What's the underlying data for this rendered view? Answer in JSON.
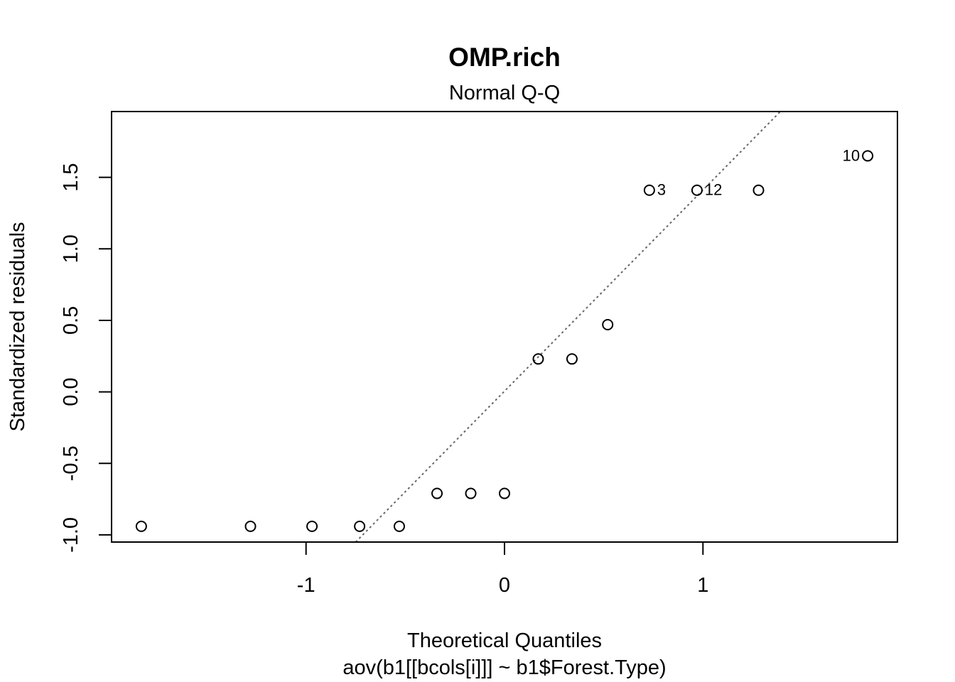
{
  "chart_data": {
    "type": "scatter",
    "title": "OMP.rich",
    "subtitle": "Normal Q-Q",
    "xlabel": "Theoretical Quantiles",
    "xlabel_sub": "aov(b1[[bcols[i]]] ~ b1$Forest.Type)",
    "ylabel": "Standardized residuals",
    "xlim": [
      -1.98,
      1.98
    ],
    "ylim": [
      -1.05,
      1.96
    ],
    "xticks": [
      -1,
      0,
      1
    ],
    "xtick_labels": [
      "-1",
      "0",
      "1"
    ],
    "yticks": [
      -1.0,
      -0.5,
      0.0,
      0.5,
      1.0,
      1.5
    ],
    "ytick_labels": [
      "-1.0",
      "-0.5",
      "0.0",
      "0.5",
      "1.0",
      "1.5"
    ],
    "grid": false,
    "points": [
      {
        "x": -1.83,
        "y": -0.94,
        "label": ""
      },
      {
        "x": -1.28,
        "y": -0.94,
        "label": ""
      },
      {
        "x": -0.97,
        "y": -0.94,
        "label": ""
      },
      {
        "x": -0.73,
        "y": -0.94,
        "label": ""
      },
      {
        "x": -0.53,
        "y": -0.94,
        "label": ""
      },
      {
        "x": -0.34,
        "y": -0.71,
        "label": ""
      },
      {
        "x": -0.17,
        "y": -0.71,
        "label": ""
      },
      {
        "x": 0.0,
        "y": -0.71,
        "label": ""
      },
      {
        "x": 0.17,
        "y": 0.23,
        "label": ""
      },
      {
        "x": 0.34,
        "y": 0.23,
        "label": ""
      },
      {
        "x": 0.52,
        "y": 0.47,
        "label": ""
      },
      {
        "x": 0.73,
        "y": 1.41,
        "label": "3",
        "label_side": "right"
      },
      {
        "x": 0.97,
        "y": 1.41,
        "label": "12",
        "label_side": "right"
      },
      {
        "x": 1.28,
        "y": 1.41,
        "label": ""
      },
      {
        "x": 1.83,
        "y": 1.65,
        "label": "10",
        "label_side": "left"
      }
    ],
    "reference_line": {
      "style": "dotted",
      "color": "#666666",
      "p1": {
        "x": -0.75,
        "y": -1.05
      },
      "p2": {
        "x": 1.39,
        "y": 1.96
      }
    }
  }
}
